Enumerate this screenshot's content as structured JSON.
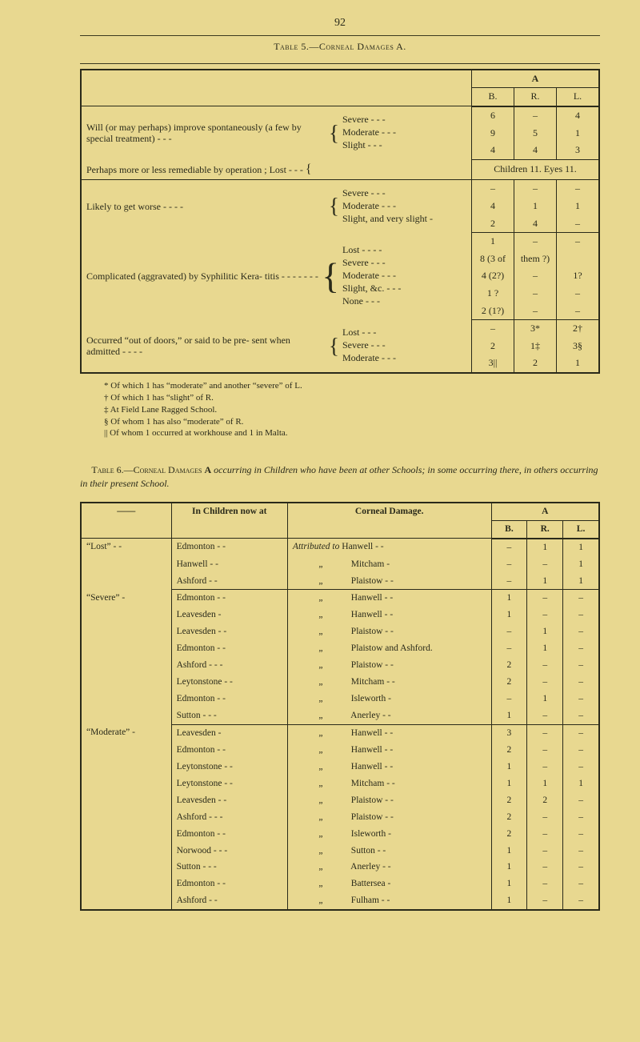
{
  "page_number": "92",
  "table5": {
    "caption": "Table 5.—Corneal Damages A.",
    "col_A": "A",
    "cols": [
      "B.",
      "R.",
      "L."
    ],
    "sections": [
      {
        "lead": "Will (or may perhaps) improve spontaneously (a few by special treatment)   -   -   -",
        "subs": [
          {
            "label": "Severe   -   -   -",
            "b": "6",
            "r": "–",
            "l": "4"
          },
          {
            "label": "Moderate   -   -   -",
            "b": "9",
            "r": "5",
            "l": "1"
          },
          {
            "label": "Slight   -   -   -",
            "b": "4",
            "r": "4",
            "l": "3"
          }
        ]
      },
      {
        "lead": "Perhaps more or less remediable by operation ;  Lost   -   -   -",
        "merged": "Children 11. Eyes 11."
      },
      {
        "lead": "Likely to get worse   -   -   -   -",
        "subs": [
          {
            "label": "Severe   -   -   -",
            "b": "–",
            "r": "–",
            "l": "–"
          },
          {
            "label": "Moderate   -   -   -",
            "b": "4",
            "r": "1",
            "l": "1"
          },
          {
            "label": "Slight, and very slight -",
            "b": "2",
            "r": "4",
            "l": "–"
          }
        ]
      },
      {
        "lead": "Complicated (aggravated) by Syphilitic Kera- titis -   -   -   -   -   -   -",
        "subs": [
          {
            "label": "Lost -   -   -   -",
            "b": "1",
            "r": "–",
            "l": "–"
          },
          {
            "label": "Severe   -   -   -",
            "b": "8 (3 of",
            "r": "them ?)",
            "l": ""
          },
          {
            "label": "Moderate   -   -   -",
            "b": "4 (2?)",
            "r": "–",
            "l": "1?"
          },
          {
            "label": "Slight, &c.   -   -   -",
            "b": "1 ?",
            "r": "–",
            "l": "–"
          },
          {
            "label": "None   -   -   -",
            "b": "2 (1?)",
            "r": "–",
            "l": "–"
          }
        ]
      },
      {
        "lead": "Occurred “out of doors,” or said to be pre- sent when admitted   -   -   -   -",
        "subs": [
          {
            "label": "Lost   -   -   -",
            "b": "–",
            "r": "3*",
            "l": "2†"
          },
          {
            "label": "Severe   -   -   -",
            "b": "2",
            "r": "1‡",
            "l": "3§"
          },
          {
            "label": "Moderate -   -   -",
            "b": "3||",
            "r": "2",
            "l": "1"
          }
        ]
      }
    ],
    "footnotes": [
      "* Of which 1 has “moderate” and another “severe” of L.",
      "† Of which 1 has “slight” of R.",
      "‡ At Field Lane Ragged School.",
      "§ Of whom 1 has also “moderate” of R.",
      "|| Of whom 1 occurred at workhouse and 1 in Malta."
    ]
  },
  "table6": {
    "caption_prefix": "Table 6.—Corneal Damages ",
    "caption_bold": "A",
    "caption_rest": " occurring in Children who have been at other Schools; in some occurring there, in others occurring in their present School.",
    "head_children": "In Children now at",
    "head_damage": "Corneal Damage.",
    "col_A": "A",
    "cols": [
      "B.",
      "R.",
      "L."
    ],
    "groups": [
      {
        "label": "“Lost”  -   -",
        "rows": [
          {
            "child": "Edmonton   -   -",
            "attr": "Attributed to",
            "place": "Hanwell -   -",
            "b": "–",
            "r": "1",
            "l": "1"
          },
          {
            "child": "Hanwell   -   -",
            "attr": "„",
            "place": "Mitcham   -",
            "b": "–",
            "r": "–",
            "l": "1"
          },
          {
            "child": "Ashford   -   -",
            "attr": "„",
            "place": "Plaistow -   -",
            "b": "–",
            "r": "1",
            "l": "1"
          }
        ]
      },
      {
        "label": "“Severe”   -",
        "rows": [
          {
            "child": "Edmonton   -   -",
            "attr": "„",
            "place": "Hanwell -   -",
            "b": "1",
            "r": "–",
            "l": "–"
          },
          {
            "child": "Leavesden   -",
            "attr": "„",
            "place": "Hanwell -   -",
            "b": "1",
            "r": "–",
            "l": "–"
          },
          {
            "child": "Leavesden -   -",
            "attr": "„",
            "place": "Plaistow -   -",
            "b": "–",
            "r": "1",
            "l": "–"
          },
          {
            "child": "Edmonton   -   -",
            "attr": "„",
            "place": "Plaistow  and Ashford.",
            "b": "–",
            "r": "1",
            "l": "–"
          },
          {
            "child": "Ashford -   -   -",
            "attr": "„",
            "place": "Plaistow -   -",
            "b": "2",
            "r": "–",
            "l": "–"
          },
          {
            "child": "Leytonstone   -  -",
            "attr": "„",
            "place": "Mitcham -   -",
            "b": "2",
            "r": "–",
            "l": "–"
          },
          {
            "child": "Edmonton   -   -",
            "attr": "„",
            "place": "Isleworth   -",
            "b": "–",
            "r": "1",
            "l": "–"
          },
          {
            "child": "Sutton   -   -   -",
            "attr": "„",
            "place": "Anerley  -   -",
            "b": "1",
            "r": "–",
            "l": "–"
          }
        ]
      },
      {
        "label": "“Moderate” -",
        "rows": [
          {
            "child": "Leavesden   -",
            "attr": "„",
            "place": "Hanwell -   -",
            "b": "3",
            "r": "–",
            "l": "–"
          },
          {
            "child": "Edmonton   -   -",
            "attr": "„",
            "place": "Hanwell -   -",
            "b": "2",
            "r": "–",
            "l": "–"
          },
          {
            "child": "Leytonstone   -  -",
            "attr": "„",
            "place": "Hanwell -   -",
            "b": "1",
            "r": "–",
            "l": "–"
          },
          {
            "child": "Leytonstone  -   -",
            "attr": "„",
            "place": "Mitcham -   -",
            "b": "1",
            "r": "1",
            "l": "1"
          },
          {
            "child": "Leavesden   -   -",
            "attr": "„",
            "place": "Plaistow -   -",
            "b": "2",
            "r": "2",
            "l": "–"
          },
          {
            "child": "Ashford   -   -   -",
            "attr": "„",
            "place": "Plaistow -   -",
            "b": "2",
            "r": "–",
            "l": "–"
          },
          {
            "child": "Edmonton   -   -",
            "attr": "„",
            "place": "Isleworth   -",
            "b": "2",
            "r": "–",
            "l": "–"
          },
          {
            "child": "Norwood -   -   -",
            "attr": "„",
            "place": "Sutton   -   -",
            "b": "1",
            "r": "–",
            "l": "–"
          },
          {
            "child": "Sutton   -   -   -",
            "attr": "„",
            "place": "Anerley -   -",
            "b": "1",
            "r": "–",
            "l": "–"
          },
          {
            "child": "Edmonton   -   -",
            "attr": "„",
            "place": "Battersea   -",
            "b": "1",
            "r": "–",
            "l": "–"
          },
          {
            "child": "Ashford   -   -",
            "attr": "„",
            "place": "Fulham  -   -",
            "b": "1",
            "r": "–",
            "l": "–"
          }
        ]
      }
    ]
  },
  "colors": {
    "paper": "#e8d890",
    "ink": "#2a2a1a"
  }
}
